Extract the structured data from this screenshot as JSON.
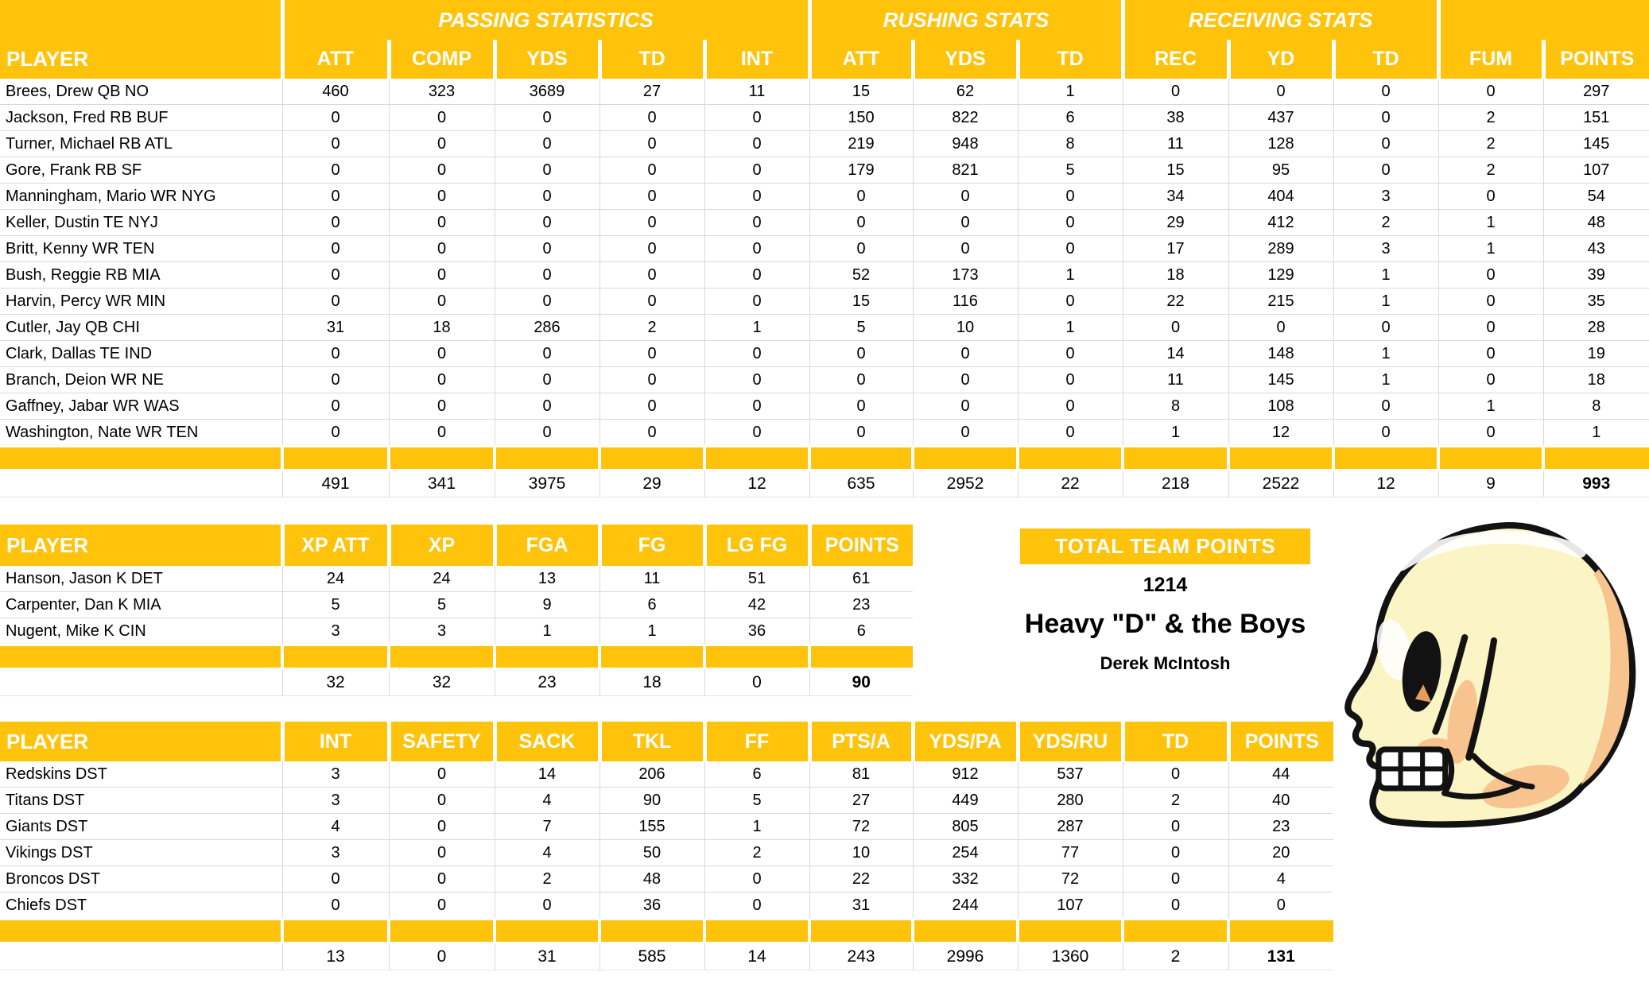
{
  "colors": {
    "gold": "#FFC30B",
    "grid": "#D9D9D9",
    "header_text": "#FFFFFF",
    "body_text": "#000000",
    "skull_cream": "#FBF4C4",
    "skull_shade": "#F7C38E"
  },
  "offense": {
    "group_headers": {
      "passing": "PASSING STATISTICS",
      "rushing": "RUSHING STATS",
      "receiving": "RECEIVING STATS"
    },
    "columns": [
      "PLAYER",
      "ATT",
      "COMP",
      "YDS",
      "TD",
      "INT",
      "ATT",
      "YDS",
      "TD",
      "REC",
      "YD",
      "TD",
      "FUM",
      "POINTS"
    ],
    "rows": [
      {
        "player": "Brees, Drew QB NO",
        "values": [
          460,
          323,
          3689,
          27,
          11,
          15,
          62,
          1,
          0,
          0,
          0,
          0,
          297
        ]
      },
      {
        "player": "Jackson, Fred RB BUF",
        "values": [
          0,
          0,
          0,
          0,
          0,
          150,
          822,
          6,
          38,
          437,
          0,
          2,
          151
        ]
      },
      {
        "player": "Turner, Michael RB ATL",
        "values": [
          0,
          0,
          0,
          0,
          0,
          219,
          948,
          8,
          11,
          128,
          0,
          2,
          145
        ]
      },
      {
        "player": "Gore, Frank RB SF",
        "values": [
          0,
          0,
          0,
          0,
          0,
          179,
          821,
          5,
          15,
          95,
          0,
          2,
          107
        ]
      },
      {
        "player": "Manningham, Mario WR NYG",
        "values": [
          0,
          0,
          0,
          0,
          0,
          0,
          0,
          0,
          34,
          404,
          3,
          0,
          54
        ]
      },
      {
        "player": "Keller, Dustin TE NYJ",
        "values": [
          0,
          0,
          0,
          0,
          0,
          0,
          0,
          0,
          29,
          412,
          2,
          1,
          48
        ]
      },
      {
        "player": "Britt, Kenny WR TEN",
        "values": [
          0,
          0,
          0,
          0,
          0,
          0,
          0,
          0,
          17,
          289,
          3,
          1,
          43
        ]
      },
      {
        "player": "Bush, Reggie RB MIA",
        "values": [
          0,
          0,
          0,
          0,
          0,
          52,
          173,
          1,
          18,
          129,
          1,
          0,
          39
        ]
      },
      {
        "player": "Harvin, Percy WR MIN",
        "values": [
          0,
          0,
          0,
          0,
          0,
          15,
          116,
          0,
          22,
          215,
          1,
          0,
          35
        ]
      },
      {
        "player": "Cutler, Jay QB CHI",
        "values": [
          31,
          18,
          286,
          2,
          1,
          5,
          10,
          1,
          0,
          0,
          0,
          0,
          28
        ]
      },
      {
        "player": "Clark, Dallas TE IND",
        "values": [
          0,
          0,
          0,
          0,
          0,
          0,
          0,
          0,
          14,
          148,
          1,
          0,
          19
        ]
      },
      {
        "player": "Branch, Deion WR NE",
        "values": [
          0,
          0,
          0,
          0,
          0,
          0,
          0,
          0,
          11,
          145,
          1,
          0,
          18
        ]
      },
      {
        "player": "Gaffney, Jabar WR WAS",
        "values": [
          0,
          0,
          0,
          0,
          0,
          0,
          0,
          0,
          8,
          108,
          0,
          1,
          8
        ]
      },
      {
        "player": "Washington, Nate WR TEN",
        "values": [
          0,
          0,
          0,
          0,
          0,
          0,
          0,
          0,
          1,
          12,
          0,
          0,
          1
        ]
      }
    ],
    "totals": [
      491,
      341,
      3975,
      29,
      12,
      635,
      2952,
      22,
      218,
      2522,
      12,
      9,
      993
    ]
  },
  "kickers": {
    "columns": [
      "PLAYER",
      "XP ATT",
      "XP",
      "FGA",
      "FG",
      "LG FG",
      "POINTS"
    ],
    "rows": [
      {
        "player": "Hanson, Jason K DET",
        "values": [
          24,
          24,
          13,
          11,
          51,
          61
        ]
      },
      {
        "player": "Carpenter, Dan K MIA",
        "values": [
          5,
          5,
          9,
          6,
          42,
          23
        ]
      },
      {
        "player": "Nugent, Mike K CIN",
        "values": [
          3,
          3,
          1,
          1,
          36,
          6
        ]
      }
    ],
    "totals": [
      32,
      32,
      23,
      18,
      0,
      90
    ]
  },
  "team_summary": {
    "header": "TOTAL TEAM POINTS",
    "total_points": "1214",
    "team_name": "Heavy \"D\" & the Boys",
    "owner": "Derek McIntosh"
  },
  "defense": {
    "columns": [
      "PLAYER",
      "INT",
      "SAFETY",
      "SACK",
      "TKL",
      "FF",
      "PTS/A",
      "YDS/PA",
      "YDS/RU",
      "TD",
      "POINTS"
    ],
    "rows": [
      {
        "player": "Redskins DST",
        "values": [
          3,
          0,
          14,
          206,
          6,
          81,
          912,
          537,
          0,
          44
        ]
      },
      {
        "player": "Titans DST",
        "values": [
          3,
          0,
          4,
          90,
          5,
          27,
          449,
          280,
          2,
          40
        ]
      },
      {
        "player": "Giants DST",
        "values": [
          4,
          0,
          7,
          155,
          1,
          72,
          805,
          287,
          0,
          23
        ]
      },
      {
        "player": "Vikings DST",
        "values": [
          3,
          0,
          4,
          50,
          2,
          10,
          254,
          77,
          0,
          20
        ]
      },
      {
        "player": "Broncos DST",
        "values": [
          0,
          0,
          2,
          48,
          0,
          22,
          332,
          72,
          0,
          4
        ]
      },
      {
        "player": "Chiefs DST",
        "values": [
          0,
          0,
          0,
          36,
          0,
          31,
          244,
          107,
          0,
          0
        ]
      }
    ],
    "totals": [
      13,
      0,
      31,
      585,
      14,
      243,
      2996,
      1360,
      2,
      131
    ]
  },
  "skull_image_label": "skull-clipart"
}
